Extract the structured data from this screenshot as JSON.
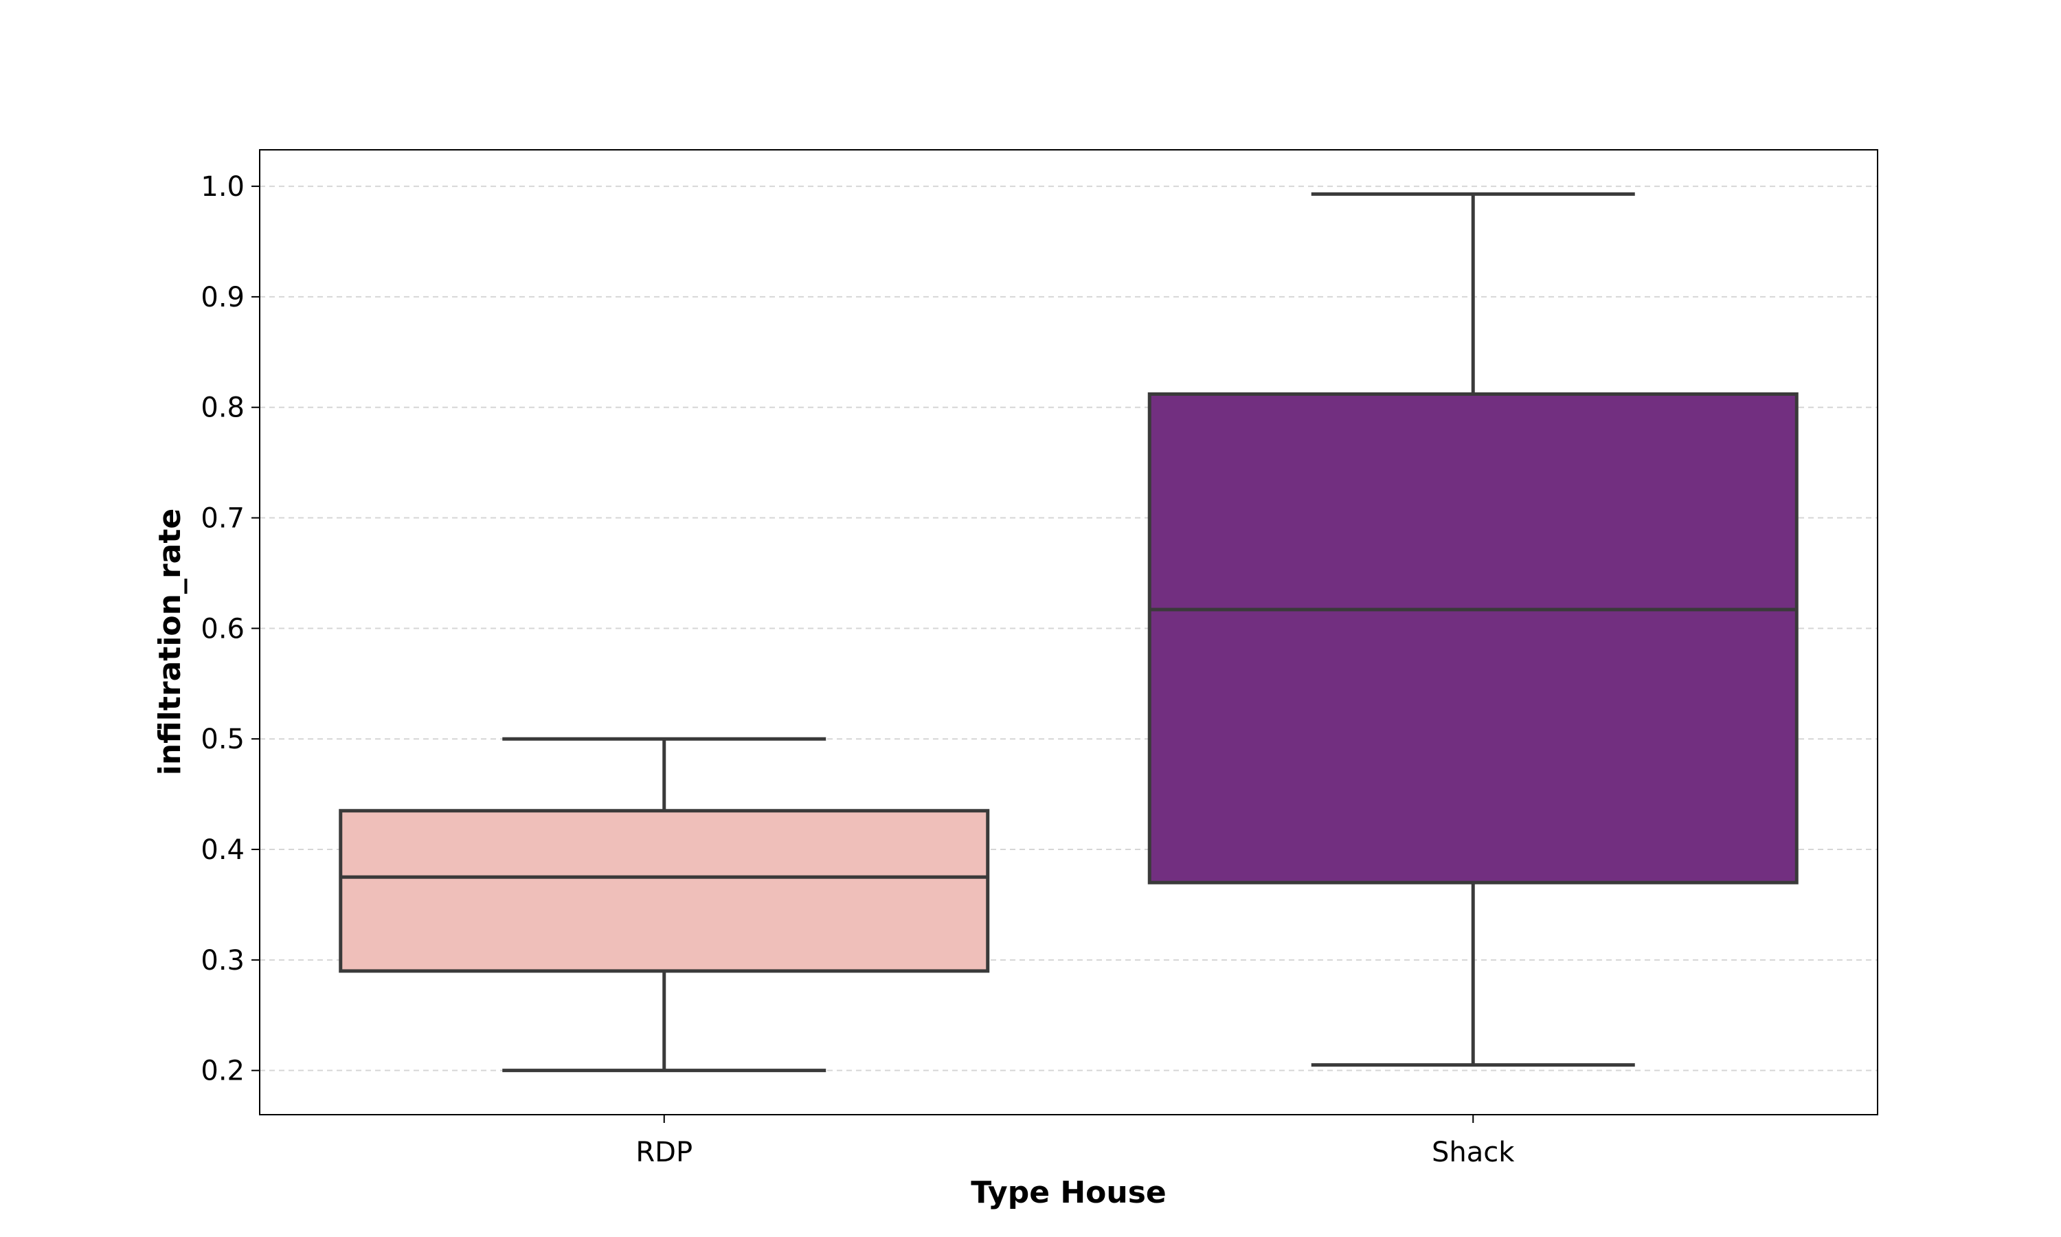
{
  "chart_data": {
    "type": "boxplot",
    "title": "",
    "xlabel": "Type House",
    "ylabel": "infiltration_rate",
    "categories": [
      "RDP",
      "Shack"
    ],
    "boxes": [
      {
        "category": "RDP",
        "whisker_low": 0.2,
        "q1": 0.29,
        "median": 0.375,
        "q3": 0.435,
        "whisker_high": 0.5,
        "color": "#efbfba"
      },
      {
        "category": "Shack",
        "whisker_low": 0.205,
        "q1": 0.37,
        "median": 0.617,
        "q3": 0.812,
        "whisker_high": 0.993,
        "color": "#722f80"
      }
    ],
    "yticks": [
      "0.2",
      "0.3",
      "0.4",
      "0.5",
      "0.6",
      "0.7",
      "0.8",
      "0.9",
      "1.0"
    ],
    "ylim": [
      0.16,
      1.033
    ],
    "grid": true,
    "legend": "none",
    "edge_color": "#3a3a3a",
    "grid_color": "#d6d6d6"
  }
}
